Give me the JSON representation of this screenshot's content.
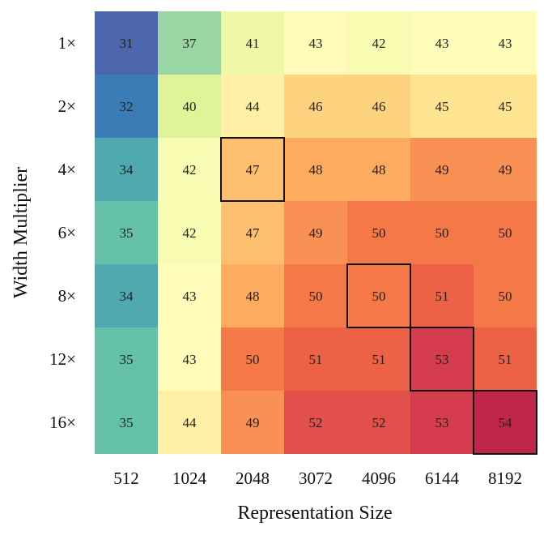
{
  "chart_data": {
    "type": "heatmap",
    "title": "",
    "xlabel": "Representation Size",
    "ylabel": "Width Multiplier",
    "x_categories": [
      "512",
      "1024",
      "2048",
      "3072",
      "4096",
      "6144",
      "8192"
    ],
    "y_categories": [
      "1×",
      "2×",
      "4×",
      "6×",
      "8×",
      "12×",
      "16×"
    ],
    "values": [
      [
        31,
        37,
        41,
        43,
        42,
        43,
        43
      ],
      [
        32,
        40,
        44,
        46,
        46,
        45,
        45
      ],
      [
        34,
        42,
        47,
        48,
        48,
        49,
        49
      ],
      [
        35,
        42,
        47,
        49,
        50,
        50,
        50
      ],
      [
        34,
        43,
        48,
        50,
        50,
        51,
        50
      ],
      [
        35,
        43,
        50,
        51,
        51,
        53,
        51
      ],
      [
        35,
        44,
        49,
        52,
        52,
        53,
        54
      ]
    ],
    "highlighted_cells": [
      {
        "row": 2,
        "col": 2
      },
      {
        "row": 4,
        "col": 4
      },
      {
        "row": 5,
        "col": 5
      },
      {
        "row": 6,
        "col": 6
      }
    ],
    "colormap": "Spectral_r",
    "color_range": [
      31,
      54
    ],
    "grid": false,
    "legend": "none"
  }
}
